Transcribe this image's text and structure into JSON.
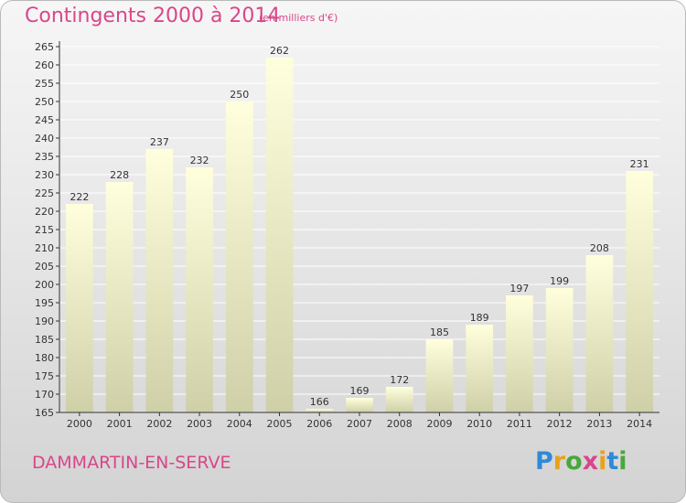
{
  "header": {
    "title": "Contingents 2000 à 2014",
    "subtitle": "(en milliers d'€)"
  },
  "footer": {
    "commune": "DAMMARTIN-EN-SERVE",
    "logo_text": "Proxiti"
  },
  "colors": {
    "title": "#d9468a",
    "bar_top": "#ffffdd",
    "bar_bottom": "#cfcfa8",
    "grid": "#ffffff",
    "axis": "#333333"
  },
  "chart_data": {
    "type": "bar",
    "categories": [
      "2000",
      "2001",
      "2002",
      "2003",
      "2004",
      "2005",
      "2006",
      "2007",
      "2008",
      "2009",
      "2010",
      "2011",
      "2012",
      "2013",
      "2014"
    ],
    "values": [
      222,
      228,
      237,
      232,
      250,
      262,
      166,
      169,
      172,
      185,
      189,
      197,
      199,
      208,
      231
    ],
    "title": "Contingents 2000 à 2014",
    "subtitle": "(en milliers d'€)",
    "xlabel": "",
    "ylabel": "",
    "ylim": [
      165,
      265
    ],
    "yticks": [
      165,
      170,
      175,
      180,
      185,
      190,
      195,
      200,
      205,
      210,
      215,
      220,
      225,
      230,
      235,
      240,
      245,
      250,
      255,
      260,
      265
    ],
    "grid": true,
    "data_labels": true
  }
}
